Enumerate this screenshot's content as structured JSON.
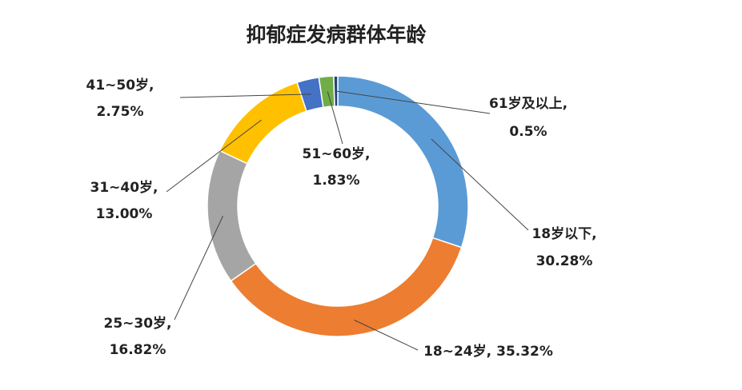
{
  "chart_data": {
    "type": "donut",
    "title": "抑郁症发病群体年龄",
    "categories": [
      "18岁以下,",
      "18~24岁,",
      "25~30岁,",
      "31~40岁,",
      "41~50岁,",
      "51~60岁,",
      "61岁及以上,"
    ],
    "values": [
      30.28,
      35.32,
      16.82,
      13.0,
      2.75,
      1.83,
      0.5
    ],
    "value_labels": [
      "30.28%",
      "35.32%",
      "16.82%",
      "13.00%",
      "2.75%",
      "1.83%",
      "0.5%"
    ],
    "colors": [
      "#5b9bd5",
      "#ed7d31",
      "#a5a5a5",
      "#ffc000",
      "#4472c4",
      "#70ad47",
      "#264478"
    ]
  }
}
